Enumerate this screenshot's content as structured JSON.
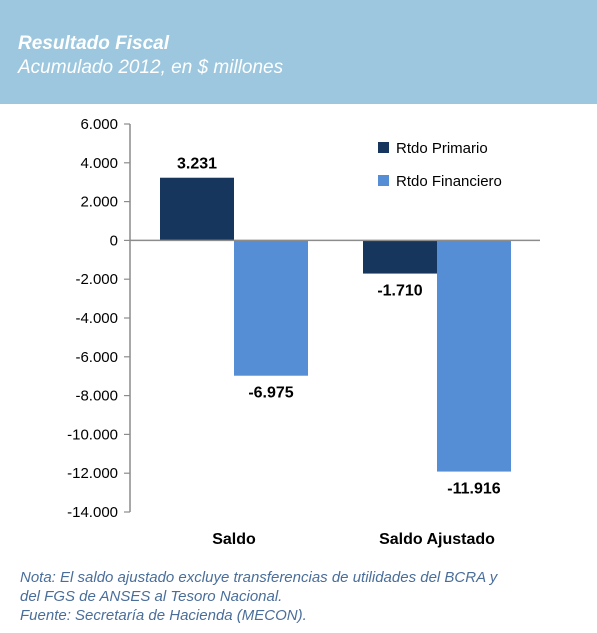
{
  "header": {
    "title": "Resultado Fiscal",
    "subtitle": "Acumulado 2012, en $ millones"
  },
  "chart_data": {
    "type": "bar",
    "categories": [
      "Saldo",
      "Saldo Ajustado"
    ],
    "series": [
      {
        "name": "Rtdo Primario",
        "values": [
          3231,
          -1710
        ],
        "labels": [
          "3.231",
          "-1.710"
        ],
        "color": "#17365d"
      },
      {
        "name": "Rtdo Financiero",
        "values": [
          -6975,
          -11916
        ],
        "labels": [
          "-6.975",
          "-11.916"
        ],
        "color": "#558ed5"
      }
    ],
    "ylim": [
      -14000,
      6000
    ],
    "yticks": [
      6000,
      4000,
      2000,
      0,
      -2000,
      -4000,
      -6000,
      -8000,
      -10000,
      -12000,
      -14000
    ],
    "ytick_labels": [
      "6.000",
      "4.000",
      "2.000",
      "0",
      "-2.000",
      "-4.000",
      "-6.000",
      "-8.000",
      "-10.000",
      "-12.000",
      "-14.000"
    ],
    "legend_position": "top-right",
    "grid": false
  },
  "notes": {
    "line1": "Nota: El saldo ajustado excluye transferencias de utilidades del BCRA y",
    "line2": "del FGS de ANSES al Tesoro Nacional.",
    "line3": "Fuente: Secretaría de Hacienda (MECON)."
  }
}
